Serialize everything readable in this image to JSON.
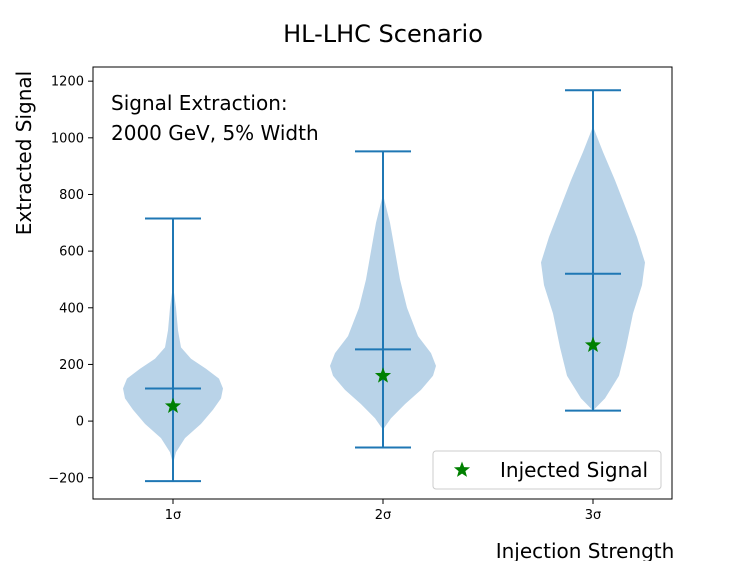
{
  "chart_data": {
    "type": "violin",
    "title": "HL-LHC Scenario",
    "xlabel": "Injection Strength",
    "ylabel": "Extracted Signal",
    "annotation": [
      "Signal Extraction:",
      "2000 GeV, 5% Width"
    ],
    "categories": [
      "1σ",
      "2σ",
      "3σ"
    ],
    "ylim": [
      -275,
      1250
    ],
    "yticks": [
      -200,
      0,
      200,
      400,
      600,
      800,
      1000,
      1200
    ],
    "grid": false,
    "legend": {
      "position": "lower-right",
      "entries": [
        {
          "label": "Injected Signal",
          "marker": "star",
          "color": "#008000"
        }
      ]
    },
    "colors": {
      "violin_fill": "#b9d3e8",
      "violin_line": "#1f77b4",
      "star": "#008000"
    },
    "violins": [
      {
        "category": "1σ",
        "min": -212,
        "max": 715,
        "median": 115,
        "injected": 53,
        "profile": [
          [
            -150,
            0
          ],
          [
            -110,
            3
          ],
          [
            -60,
            12
          ],
          [
            -10,
            28
          ],
          [
            40,
            40
          ],
          [
            80,
            48
          ],
          [
            115,
            50
          ],
          [
            150,
            46
          ],
          [
            185,
            33
          ],
          [
            220,
            18
          ],
          [
            260,
            8
          ],
          [
            320,
            5
          ],
          [
            400,
            3
          ],
          [
            480,
            0
          ]
        ]
      },
      {
        "category": "2σ",
        "min": -93,
        "max": 952,
        "median": 253,
        "injected": 160,
        "profile": [
          [
            -30,
            0
          ],
          [
            10,
            8
          ],
          [
            60,
            22
          ],
          [
            110,
            38
          ],
          [
            160,
            50
          ],
          [
            195,
            53
          ],
          [
            240,
            48
          ],
          [
            300,
            35
          ],
          [
            400,
            24
          ],
          [
            500,
            17
          ],
          [
            600,
            12
          ],
          [
            700,
            7
          ],
          [
            800,
            0
          ]
        ]
      },
      {
        "category": "3σ",
        "min": 37,
        "max": 1168,
        "median": 520,
        "injected": 268,
        "profile": [
          [
            37,
            0
          ],
          [
            80,
            12
          ],
          [
            160,
            26
          ],
          [
            260,
            33
          ],
          [
            380,
            40
          ],
          [
            480,
            49
          ],
          [
            560,
            52
          ],
          [
            650,
            44
          ],
          [
            750,
            33
          ],
          [
            850,
            22
          ],
          [
            950,
            10
          ],
          [
            1040,
            0
          ]
        ]
      }
    ]
  }
}
